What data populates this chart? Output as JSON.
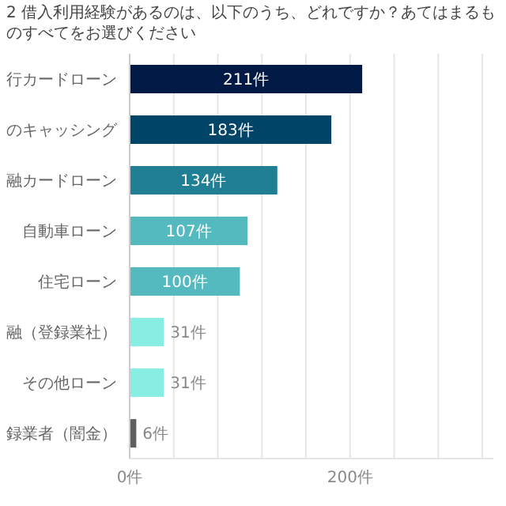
{
  "chart_data": {
    "type": "bar",
    "orientation": "horizontal",
    "title": "2 借入利用経験があるのは、以下のうち、どれですか？あてはまるものすべてをお選びください",
    "categories": [
      "行カードローン",
      "のキャッシング",
      "融カードローン",
      "自動車ローン",
      "住宅ローン",
      "融（登録業社）",
      "その他ローン",
      "録業者（闇金）"
    ],
    "values": [
      211,
      183,
      134,
      107,
      100,
      31,
      31,
      6
    ],
    "colors": [
      "#001a45",
      "#004468",
      "#207f94",
      "#55b9c0",
      "#55b9c0",
      "#88ede2",
      "#88ede2",
      "#606060"
    ],
    "value_labels": [
      "211件",
      "183件",
      "134件",
      "107件",
      "100件",
      "31件",
      "31件",
      "6件"
    ],
    "xlim": [
      0,
      330
    ],
    "xticks": [
      {
        "value": 0,
        "label": "0件"
      },
      {
        "value": 40,
        "label": null
      },
      {
        "value": 80,
        "label": null
      },
      {
        "value": 120,
        "label": null
      },
      {
        "value": 160,
        "label": null
      },
      {
        "value": 200,
        "label": "200件"
      },
      {
        "value": 240,
        "label": null
      },
      {
        "value": 280,
        "label": null
      },
      {
        "value": 320,
        "label": null
      }
    ],
    "grid": "x"
  }
}
